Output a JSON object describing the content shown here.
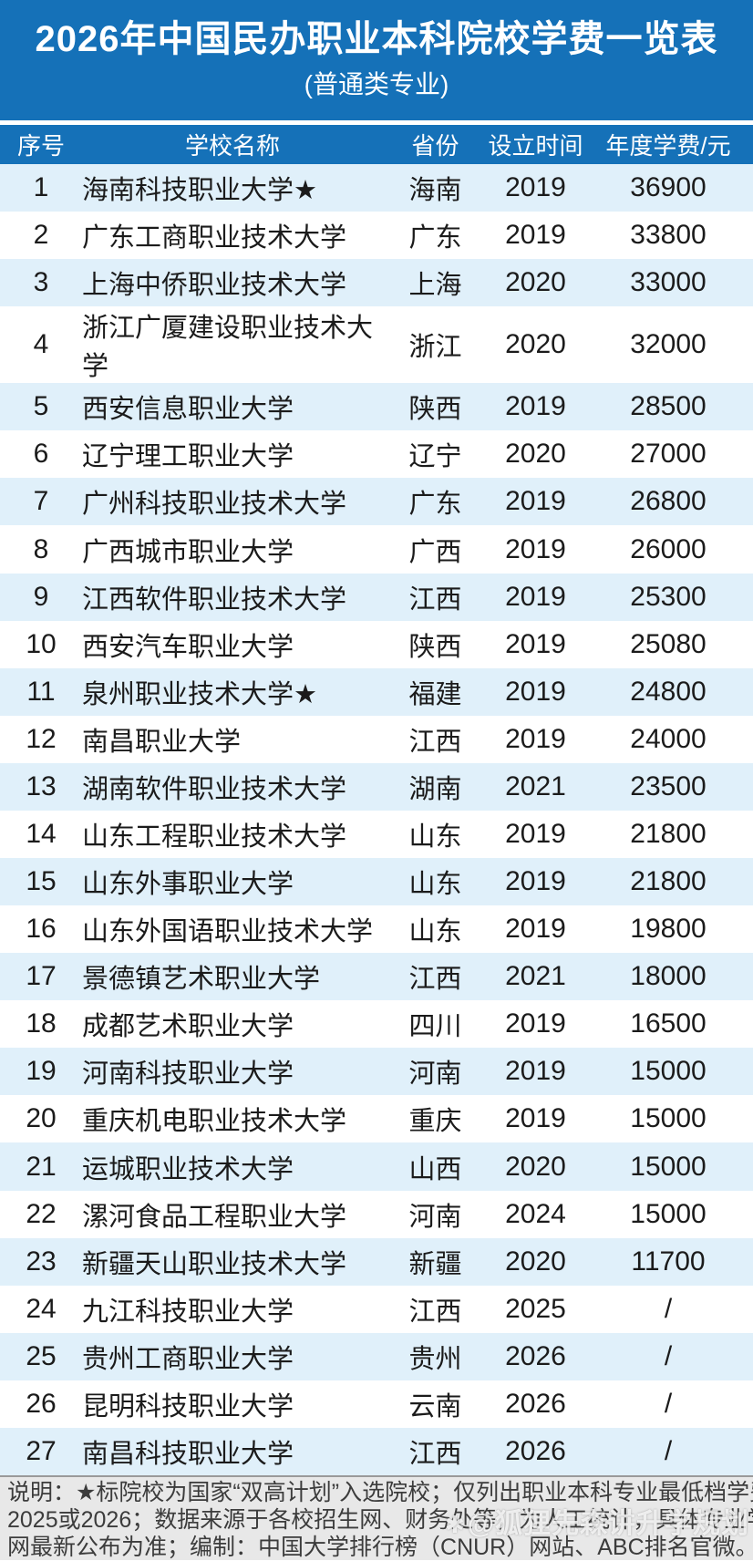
{
  "header": {
    "title": "2026年中国民办职业本科院校学费一览表",
    "subtitle": "(普通类专业)"
  },
  "table": {
    "columns": [
      "序号",
      "学校名称",
      "省份",
      "设立时间",
      "年度学费/元"
    ],
    "rows": [
      [
        "1",
        "海南科技职业大学★",
        "海南",
        "2019",
        "36900"
      ],
      [
        "2",
        "广东工商职业技术大学",
        "广东",
        "2019",
        "33800"
      ],
      [
        "3",
        "上海中侨职业技术大学",
        "上海",
        "2020",
        "33000"
      ],
      [
        "4",
        "浙江广厦建设职业技术大学",
        "浙江",
        "2020",
        "32000"
      ],
      [
        "5",
        "西安信息职业大学",
        "陕西",
        "2019",
        "28500"
      ],
      [
        "6",
        "辽宁理工职业大学",
        "辽宁",
        "2020",
        "27000"
      ],
      [
        "7",
        "广州科技职业技术大学",
        "广东",
        "2019",
        "26800"
      ],
      [
        "8",
        "广西城市职业大学",
        "广西",
        "2019",
        "26000"
      ],
      [
        "9",
        "江西软件职业技术大学",
        "江西",
        "2019",
        "25300"
      ],
      [
        "10",
        "西安汽车职业大学",
        "陕西",
        "2019",
        "25080"
      ],
      [
        "11",
        "泉州职业技术大学★",
        "福建",
        "2019",
        "24800"
      ],
      [
        "12",
        "南昌职业大学",
        "江西",
        "2019",
        "24000"
      ],
      [
        "13",
        "湖南软件职业技术大学",
        "湖南",
        "2021",
        "23500"
      ],
      [
        "14",
        "山东工程职业技术大学",
        "山东",
        "2019",
        "21800"
      ],
      [
        "15",
        "山东外事职业大学",
        "山东",
        "2019",
        "21800"
      ],
      [
        "16",
        "山东外国语职业技术大学",
        "山东",
        "2019",
        "19800"
      ],
      [
        "17",
        "景德镇艺术职业大学",
        "江西",
        "2021",
        "18000"
      ],
      [
        "18",
        "成都艺术职业大学",
        "四川",
        "2019",
        "16500"
      ],
      [
        "19",
        "河南科技职业大学",
        "河南",
        "2019",
        "15000"
      ],
      [
        "20",
        "重庆机电职业技术大学",
        "重庆",
        "2019",
        "15000"
      ],
      [
        "21",
        "运城职业技术大学",
        "山西",
        "2020",
        "15000"
      ],
      [
        "22",
        "漯河食品工程职业大学",
        "河南",
        "2024",
        "15000"
      ],
      [
        "23",
        "新疆天山职业技术大学",
        "新疆",
        "2020",
        "11700"
      ],
      [
        "24",
        "九江科技职业大学",
        "江西",
        "2025",
        "/"
      ],
      [
        "25",
        "贵州工商职业大学",
        "贵州",
        "2026",
        "/"
      ],
      [
        "26",
        "昆明科技职业大学",
        "云南",
        "2026",
        "/"
      ],
      [
        "27",
        "南昌科技职业大学",
        "江西",
        "2026",
        "/"
      ]
    ]
  },
  "footer": {
    "line1": "说明：★标院校为国家“双高计划”入选院校；仅列出职业本科专业最低档学费，年度为",
    "line2": "2025或2026；数据来源于各校招生网、财务处等，为人工统计，具体专业学费以各校官",
    "line3_left": "网最新公布为准；",
    "credit": "编制：中国大学排行榜（CNUR）网站、ABC排名官微。"
  },
  "watermark": {
    "icon": "✱",
    "text": "@狐狸先森讲升学规划"
  },
  "colors": {
    "accent": "#1571b8",
    "row_alt": "#e0f0fa",
    "row_white": "#ffffff",
    "footer_bg": "#e8e8e8",
    "footer_text": "#3c3c3c",
    "body_text": "#1b1b1b"
  }
}
